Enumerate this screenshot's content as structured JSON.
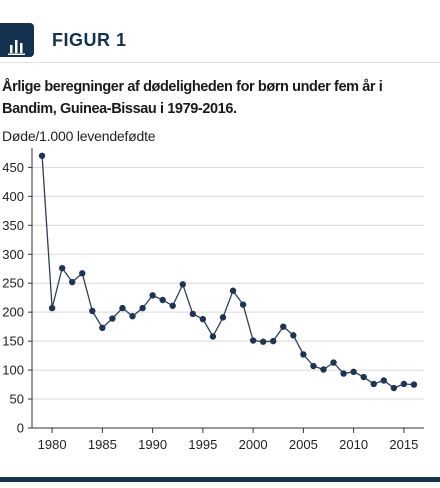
{
  "header": {
    "figure_label": "FIGUR 1",
    "icon": "bar-chart-icon"
  },
  "chart_data": {
    "type": "line",
    "title": "Årlige beregninger af dødeligheden for børn under fem år i Bandim, Guinea-Bissau i 1979-2016.",
    "ylabel": "Døde/1.000 levendefødte",
    "xlabel": "",
    "xlim": [
      1978,
      2017
    ],
    "ylim": [
      0,
      480
    ],
    "x_ticks": [
      1980,
      1985,
      1990,
      1995,
      2000,
      2005,
      2010,
      2015
    ],
    "y_ticks": [
      0,
      50,
      100,
      150,
      200,
      250,
      300,
      350,
      400,
      450
    ],
    "grid": "horizontal",
    "colors": {
      "line": "#2b3f5c",
      "marker": "#1e3454",
      "grid": "#d9d9d9"
    },
    "x": [
      1979,
      1980,
      1981,
      1982,
      1983,
      1984,
      1985,
      1986,
      1987,
      1988,
      1989,
      1990,
      1991,
      1992,
      1993,
      1994,
      1995,
      1996,
      1997,
      1998,
      1999,
      2000,
      2001,
      2002,
      2003,
      2004,
      2005,
      2006,
      2007,
      2008,
      2009,
      2010,
      2011,
      2012,
      2013,
      2014,
      2015,
      2016
    ],
    "values": [
      470,
      207,
      276,
      252,
      267,
      202,
      173,
      189,
      207,
      193,
      207,
      229,
      221,
      211,
      248,
      197,
      188,
      158,
      191,
      237,
      213,
      151,
      149,
      150,
      175,
      160,
      127,
      107,
      101,
      113,
      94,
      97,
      88,
      76,
      82,
      69,
      76,
      75
    ]
  }
}
